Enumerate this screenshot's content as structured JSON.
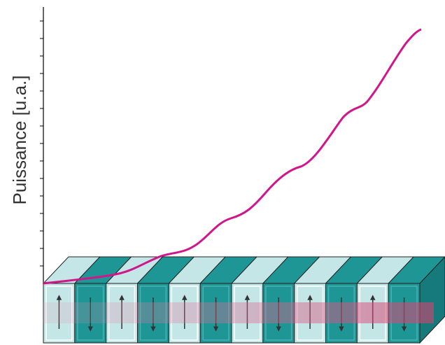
{
  "axis_label": "Puissance [u.a.]"
}
